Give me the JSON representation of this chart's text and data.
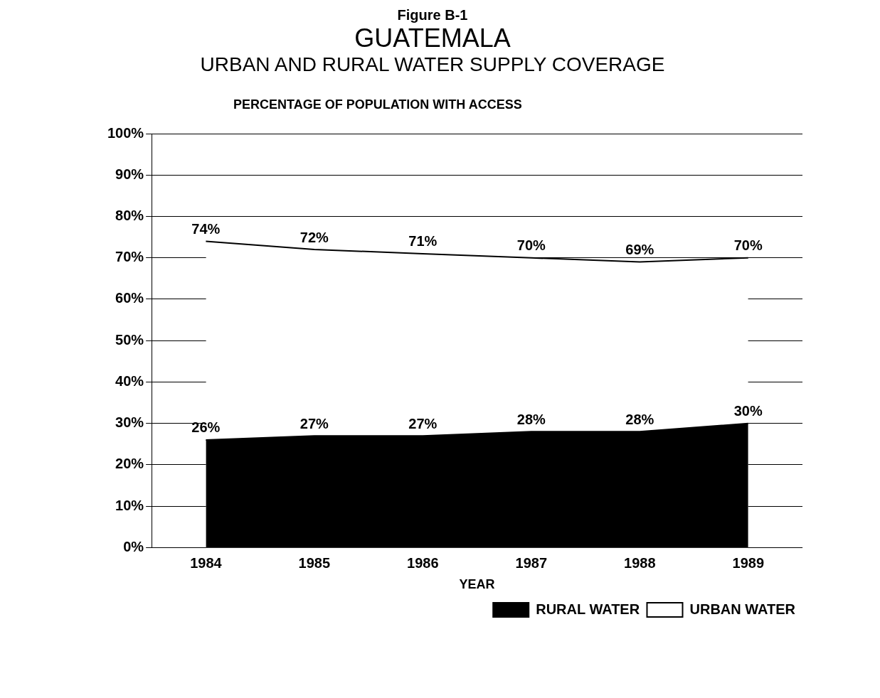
{
  "chart_data": {
    "type": "area",
    "title": "GUATEMALA",
    "subtitle": "URBAN AND RURAL WATER SUPPLY COVERAGE",
    "annotations": [
      "Figure B-1"
    ],
    "ylabel": "PERCENTAGE OF POPULATION WITH ACCESS",
    "xlabel": "YEAR",
    "categories": [
      "1984",
      "1985",
      "1986",
      "1987",
      "1988",
      "1989"
    ],
    "series": [
      {
        "name": "RURAL WATER",
        "color": "#000000",
        "values": [
          26,
          27,
          27,
          28,
          28,
          30
        ],
        "value_labels": [
          "26%",
          "27%",
          "27%",
          "28%",
          "28%",
          "30%"
        ]
      },
      {
        "name": "URBAN WATER",
        "color": "#ffffff",
        "values": [
          74,
          72,
          71,
          70,
          69,
          70
        ],
        "value_labels": [
          "74%",
          "72%",
          "71%",
          "70%",
          "69%",
          "70%"
        ]
      }
    ],
    "ylim": [
      0,
      100
    ],
    "yticks": [
      {
        "value": 0,
        "label": "0%"
      },
      {
        "value": 10,
        "label": "10%"
      },
      {
        "value": 20,
        "label": "20%"
      },
      {
        "value": 30,
        "label": "30%"
      },
      {
        "value": 40,
        "label": "40%"
      },
      {
        "value": 50,
        "label": "50%"
      },
      {
        "value": 60,
        "label": "60%"
      },
      {
        "value": 70,
        "label": "70%"
      },
      {
        "value": 80,
        "label": "80%"
      },
      {
        "value": 90,
        "label": "90%"
      },
      {
        "value": 100,
        "label": "100%"
      }
    ],
    "grid": "y",
    "legend": "bottom right"
  }
}
